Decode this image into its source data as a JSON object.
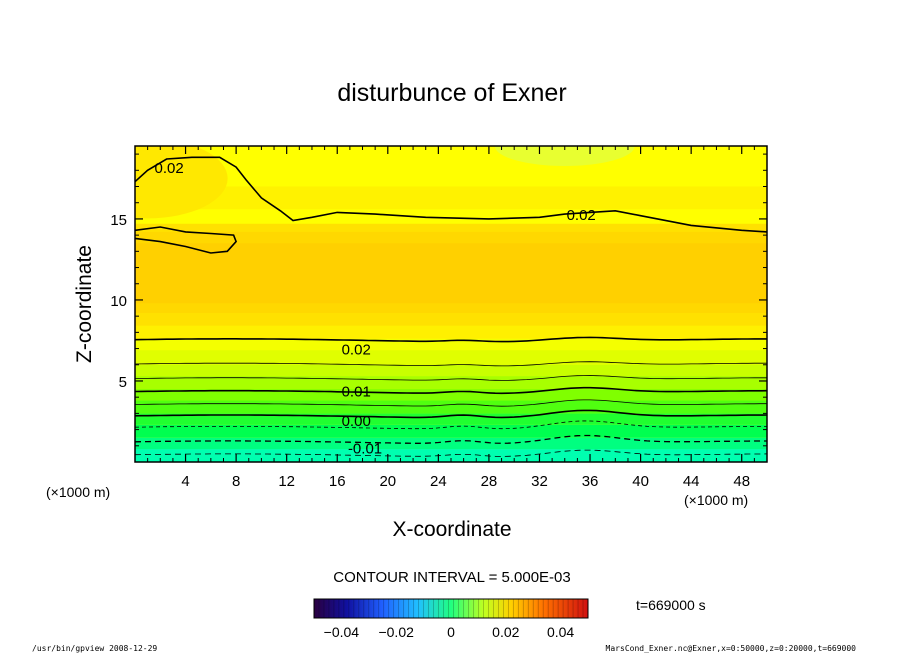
{
  "chart_data": {
    "type": "contour",
    "title": "disturbunce of Exner",
    "xlabel": "X-coordinate",
    "ylabel": "Z-coordinate",
    "xunit": "(×1000 m)",
    "yunit": "(×1000 m)",
    "xlim": [
      0,
      50
    ],
    "ylim": [
      0,
      19.5
    ],
    "xticks": [
      4,
      8,
      12,
      16,
      20,
      24,
      28,
      32,
      36,
      40,
      44,
      48
    ],
    "yticks": [
      5,
      10,
      15
    ],
    "contour_interval_label": "CONTOUR INTERVAL = 5.000E-03",
    "contour_labels": [
      {
        "text": "0.02",
        "x": 2.7,
        "z": 18.2
      },
      {
        "text": "0.02",
        "x": 35.3,
        "z": 15.3
      },
      {
        "text": "0.02",
        "x": 17.5,
        "z": 7.0
      },
      {
        "text": "0.01",
        "x": 17.5,
        "z": 4.4
      },
      {
        "text": "0.00",
        "x": 17.5,
        "z": 2.6
      },
      {
        "text": "-0.01",
        "x": 18.2,
        "z": 0.9
      }
    ],
    "colorbar": {
      "ticks": [
        "−0.04",
        "−0.02",
        "0",
        "0.02",
        "0.04"
      ],
      "range": [
        -0.05,
        0.05
      ]
    },
    "time_label": "t=669000 s"
  },
  "footer": {
    "left": "/usr/bin/gpview   2008-12-29",
    "right": "MarsCond_Exner.nc@Exner,x=0:50000,z=0:20000,t=669000"
  },
  "colors": {
    "yellow": "#ffff00",
    "gold": "#ffd700",
    "green": "#00ff40",
    "cyan": "#00ffcc"
  }
}
